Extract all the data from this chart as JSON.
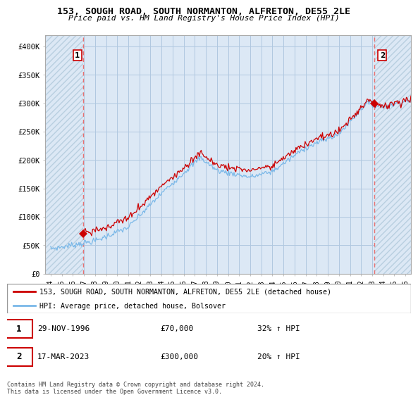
{
  "title": "153, SOUGH ROAD, SOUTH NORMANTON, ALFRETON, DE55 2LE",
  "subtitle": "Price paid vs. HM Land Registry's House Price Index (HPI)",
  "sale1_date": 1996.91,
  "sale1_price": 70000,
  "sale2_date": 2023.21,
  "sale2_price": 300000,
  "hpi_color": "#7ab8e8",
  "price_color": "#cc0000",
  "vline_color": "#e87070",
  "plot_bg_color": "#dce8f5",
  "hatch_color": "#b8cfe0",
  "grid_color": "#b0c8e0",
  "legend1_text": "153, SOUGH ROAD, SOUTH NORMANTON, ALFRETON, DE55 2LE (detached house)",
  "legend2_text": "HPI: Average price, detached house, Bolsover",
  "footer": "Contains HM Land Registry data © Crown copyright and database right 2024.\nThis data is licensed under the Open Government Licence v3.0.",
  "xlim_start": 1993.5,
  "xlim_end": 2026.5,
  "ylim": [
    0,
    420000
  ],
  "yticks": [
    0,
    50000,
    100000,
    150000,
    200000,
    250000,
    300000,
    350000,
    400000
  ],
  "ytick_labels": [
    "£0",
    "£50K",
    "£100K",
    "£150K",
    "£200K",
    "£250K",
    "£300K",
    "£350K",
    "£400K"
  ]
}
